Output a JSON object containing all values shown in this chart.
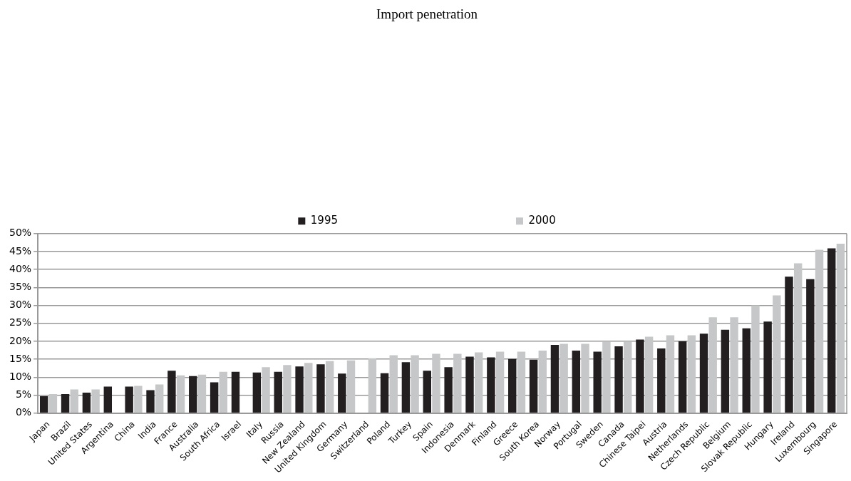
{
  "chart_data": {
    "type": "bar",
    "title": "Import penetration",
    "categories": [
      "Japan",
      "Brazil",
      "United States",
      "Argentina",
      "China",
      "India",
      "France",
      "Australia",
      "South Africa",
      "Israel",
      "Italy",
      "Russia",
      "New Zealand",
      "United Kingdom",
      "Germany",
      "Switzerland",
      "Poland",
      "Turkey",
      "Spain",
      "Indonesia",
      "Denmark",
      "Finland",
      "Greece",
      "South Korea",
      "Norway",
      "Portugal",
      "Sweden",
      "Canada",
      "Chinese Taipei",
      "Austria",
      "Netherlands",
      "Czech Republic",
      "Belgium",
      "Slovak Republic",
      "Hungary",
      "Ireland",
      "Luxembourg",
      "Singapore"
    ],
    "series": [
      {
        "name": "1995",
        "color": "#231f20",
        "values": [
          4.7,
          5.3,
          5.7,
          7.4,
          7.4,
          6.4,
          11.8,
          10.3,
          8.6,
          11.5,
          11.3,
          11.5,
          13.0,
          13.6,
          11.0,
          null,
          11.1,
          14.2,
          11.8,
          12.8,
          15.7,
          15.5,
          15.1,
          14.9,
          19.0,
          17.4,
          17.1,
          18.6,
          20.5,
          18.0,
          20.0,
          22.1,
          23.2,
          23.6,
          25.5,
          38.0,
          37.3,
          45.9
        ]
      },
      {
        "name": "2000",
        "color": "#c6c7c8",
        "values": [
          5.3,
          6.6,
          6.6,
          null,
          7.6,
          8.0,
          10.5,
          10.7,
          11.5,
          null,
          12.8,
          13.4,
          14.0,
          14.5,
          14.7,
          15.3,
          16.1,
          16.1,
          16.5,
          16.5,
          16.9,
          17.1,
          17.1,
          17.4,
          19.3,
          19.3,
          20.0,
          20.0,
          21.3,
          21.7,
          21.7,
          26.7,
          26.7,
          30.0,
          32.8,
          41.7,
          45.5,
          47.2
        ]
      }
    ],
    "ylim": [
      0,
      50
    ],
    "yticks": [
      {
        "value": 0,
        "label": "0%"
      },
      {
        "value": 5,
        "label": "5%"
      },
      {
        "value": 10,
        "label": "10%"
      },
      {
        "value": 15,
        "label": "15%"
      },
      {
        "value": 20,
        "label": "20%"
      },
      {
        "value": 25,
        "label": "25%"
      },
      {
        "value": 30,
        "label": "30%"
      },
      {
        "value": 35,
        "label": "35%"
      },
      {
        "value": 40,
        "label": "40%"
      },
      {
        "value": 45,
        "label": "45%"
      },
      {
        "value": 50,
        "label": "50%"
      }
    ],
    "grid": "y",
    "legend": "top"
  }
}
